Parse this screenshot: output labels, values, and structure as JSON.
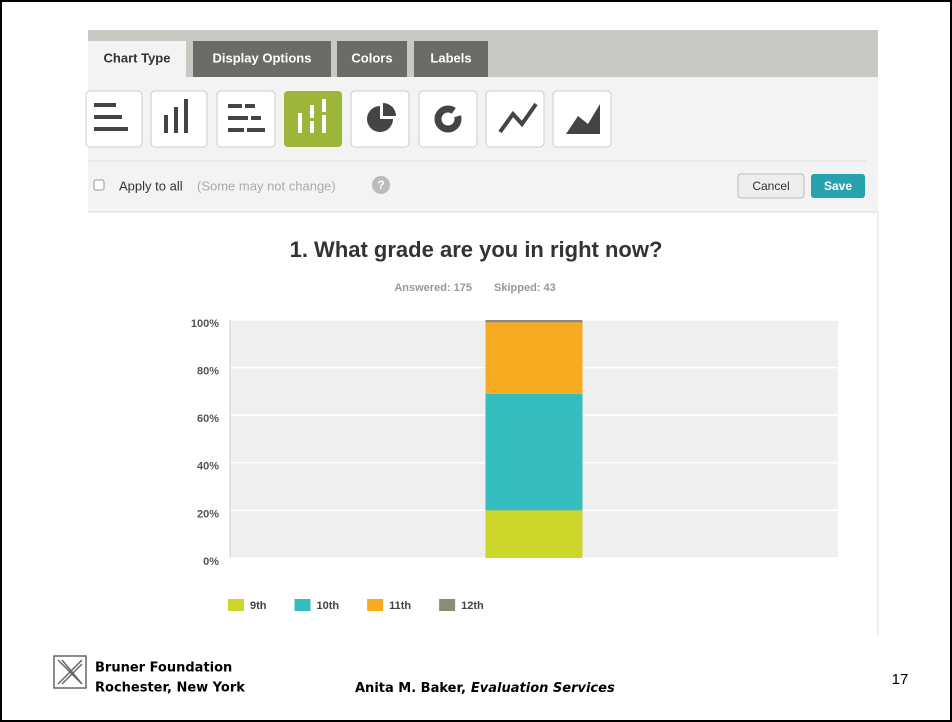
{
  "toolbar": {
    "tabs": [
      "Chart Type",
      "Display Options",
      "Colors",
      "Labels"
    ],
    "apply_label": "Apply to all",
    "apply_note": "(Some may not change)",
    "help": "?",
    "cancel": "Cancel",
    "save": "Save"
  },
  "chart_data": {
    "type": "stacked_bar",
    "title": "1. What grade are you in right now?",
    "answered": "Answered: 175",
    "skipped": "Skipped: 43",
    "categories": [
      null
    ],
    "series": [
      {
        "name": "9th",
        "color": "#cdd62a",
        "values": [
          20
        ]
      },
      {
        "name": "10th",
        "color": "#35bcbf",
        "values": [
          49
        ]
      },
      {
        "name": "11th",
        "color": "#f6ab20",
        "values": [
          30
        ]
      },
      {
        "name": "12th",
        "color": "#8b8b78",
        "values": [
          1
        ]
      }
    ],
    "ylim": [
      0,
      100
    ],
    "yticks": [
      {
        "value": 0,
        "label": "0%"
      },
      {
        "value": 20,
        "label": "20%"
      },
      {
        "value": 40,
        "label": "40%"
      },
      {
        "value": 60,
        "label": "60%"
      },
      {
        "value": 80,
        "label": "80%"
      },
      {
        "value": 100,
        "label": "100%"
      }
    ],
    "grid": true,
    "legend": "bottom"
  },
  "footer": {
    "org": "Bruner Foundation",
    "location": "Rochester, New York",
    "author": "Anita M. Baker,",
    "author_org": "Evaluation Services",
    "page": "17"
  }
}
